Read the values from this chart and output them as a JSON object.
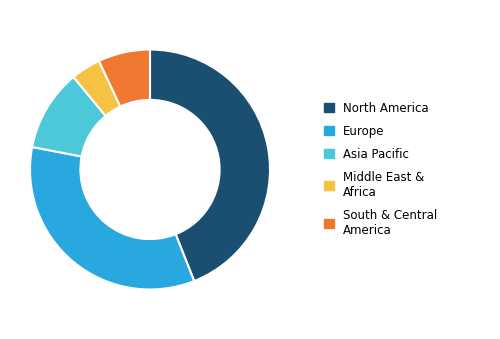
{
  "labels": [
    "North America",
    "Europe",
    "Asia Pacific",
    "Middle East &\nAfrica",
    "South & Central\nAmerica"
  ],
  "values": [
    44,
    34,
    11,
    4,
    7
  ],
  "colors": [
    "#1a4f72",
    "#29a8e0",
    "#4dc8d8",
    "#f5c242",
    "#f07830"
  ],
  "legend_labels": [
    "North America",
    "Europe",
    "Asia Pacific",
    "Middle East &\nAfrica",
    "South & Central\nAmerica"
  ],
  "donut_width": 0.42,
  "startangle": 90,
  "background_color": "#ffffff",
  "figsize": [
    5.0,
    3.39
  ],
  "dpi": 100
}
